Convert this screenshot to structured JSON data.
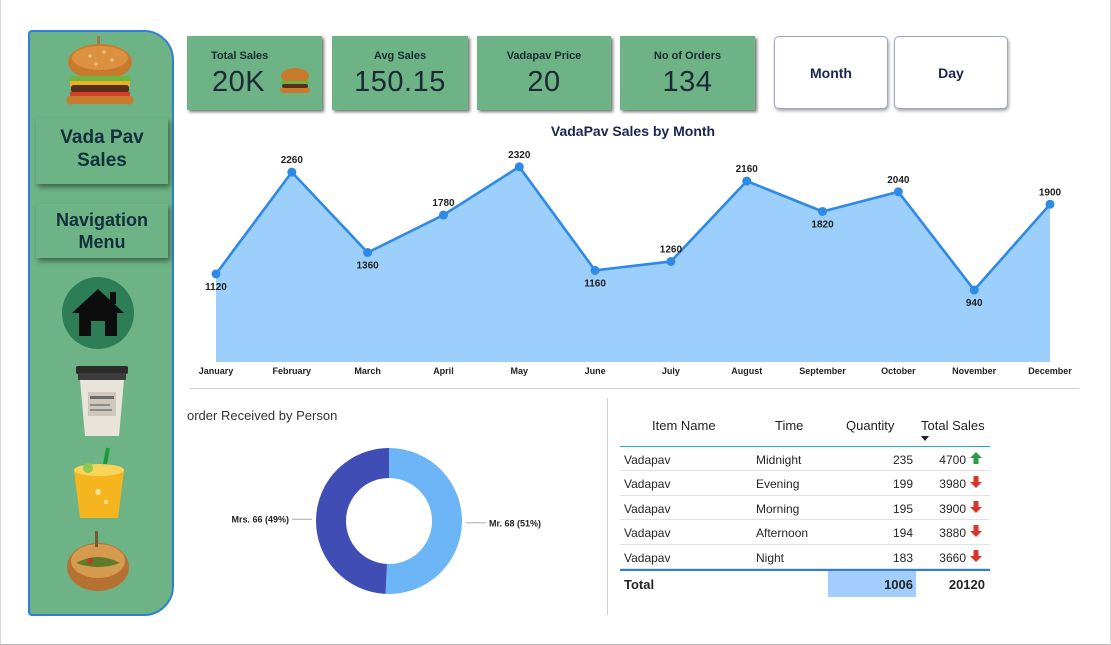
{
  "sidebar": {
    "title_line1": "Vada Pav",
    "title_line2": "Sales",
    "nav_line1": "Navigation",
    "nav_line2": "Menu"
  },
  "kpis": [
    {
      "title": "Total Sales",
      "value": "20K"
    },
    {
      "title": "Avg Sales",
      "value": "150.15"
    },
    {
      "title": "Vadapav Price",
      "value": "20"
    },
    {
      "title": "No of Orders",
      "value": "134"
    }
  ],
  "toggles": {
    "month": "Month",
    "day": "Day"
  },
  "colors": {
    "panel_green": "#6db386",
    "area_fill": "#9ccffb",
    "line_blue": "#2e8ae6",
    "donut_dark": "#3f4db5",
    "donut_light": "#6cb6f8",
    "arrow_up": "#2e9a48",
    "arrow_down": "#d9362b"
  },
  "chart_data": [
    {
      "type": "area",
      "title": "VadaPav Sales by Month",
      "categories": [
        "January",
        "February",
        "March",
        "April",
        "May",
        "June",
        "July",
        "August",
        "September",
        "October",
        "November",
        "December"
      ],
      "values": [
        1120,
        2260,
        1360,
        1780,
        2320,
        1160,
        1260,
        2160,
        1820,
        2040,
        940,
        1900
      ],
      "ylim": [
        0,
        2400
      ],
      "grid": false,
      "data_labels": true
    },
    {
      "type": "pie",
      "variant": "donut",
      "title": "order Received by Person",
      "slices": [
        {
          "name": "Mr.",
          "value": 68,
          "percent": "51%",
          "label": "Mr. 68 (51%)"
        },
        {
          "name": "Mrs.",
          "value": 66,
          "percent": "49%",
          "label": "Mrs. 66 (49%)"
        }
      ]
    }
  ],
  "table": {
    "headers": [
      "Item Name",
      "Time",
      "Quantity",
      "Total Sales"
    ],
    "rows": [
      {
        "item": "Vadapav",
        "time": "Midnight",
        "quantity": "235",
        "total": "4700",
        "trend": "up"
      },
      {
        "item": "Vadapav",
        "time": "Evening",
        "quantity": "199",
        "total": "3980",
        "trend": "down"
      },
      {
        "item": "Vadapav",
        "time": "Morning",
        "quantity": "195",
        "total": "3900",
        "trend": "down"
      },
      {
        "item": "Vadapav",
        "time": "Afternoon",
        "quantity": "194",
        "total": "3880",
        "trend": "down"
      },
      {
        "item": "Vadapav",
        "time": "Night",
        "quantity": "183",
        "total": "3660",
        "trend": "down"
      }
    ],
    "total_label": "Total",
    "total_quantity": "1006",
    "total_sales": "20120"
  },
  "icons": [
    "burger-icon",
    "home-icon",
    "coffee-cup-icon",
    "juice-glass-icon",
    "samosa-icon"
  ]
}
